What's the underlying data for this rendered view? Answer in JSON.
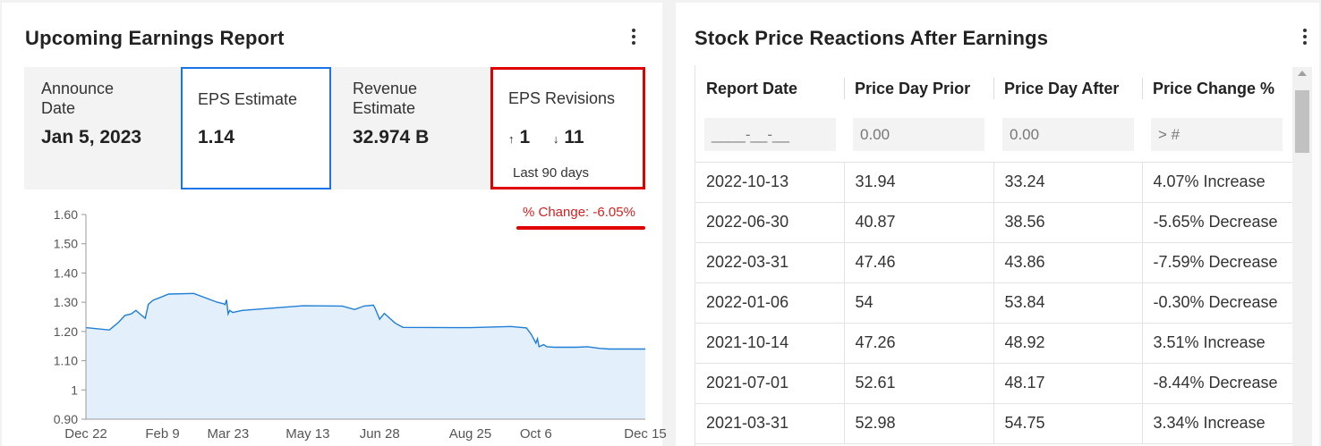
{
  "left": {
    "title": "Upcoming Earnings Report",
    "metrics": {
      "announce": {
        "label": "Announce Date",
        "value": "Jan 5, 2023"
      },
      "eps": {
        "label": "EPS Estimate",
        "value": "1.14"
      },
      "revenue": {
        "label": "Revenue Estimate",
        "value": "32.974 B"
      },
      "revisions": {
        "label": "EPS Revisions",
        "up": "1",
        "down": "11",
        "period": "Last 90 days",
        "up_icon": "↑",
        "down_icon": "↓"
      }
    },
    "pct_change": "% Change: -6.05%"
  },
  "right": {
    "title": "Stock Price Reactions After Earnings",
    "columns": [
      "Report Date",
      "Price Day Prior",
      "Price Day After",
      "Price Change %"
    ],
    "filters": [
      "____-__-__",
      "0.00",
      "0.00",
      "> #"
    ],
    "rows": [
      {
        "date": "2022-10-13",
        "prior": "31.94",
        "after": "33.24",
        "change": "4.07% Increase",
        "dir": "inc"
      },
      {
        "date": "2022-06-30",
        "prior": "40.87",
        "after": "38.56",
        "change": "-5.65% Decrease",
        "dir": "dec"
      },
      {
        "date": "2022-03-31",
        "prior": "47.46",
        "after": "43.86",
        "change": "-7.59% Decrease",
        "dir": "dec"
      },
      {
        "date": "2022-01-06",
        "prior": "54",
        "after": "53.84",
        "change": "-0.30% Decrease",
        "dir": "dec"
      },
      {
        "date": "2021-10-14",
        "prior": "47.26",
        "after": "48.92",
        "change": "3.51% Increase",
        "dir": "inc"
      },
      {
        "date": "2021-07-01",
        "prior": "52.61",
        "after": "48.17",
        "change": "-8.44% Decrease",
        "dir": "dec"
      },
      {
        "date": "2021-03-31",
        "prior": "52.98",
        "after": "54.75",
        "change": "3.34% Increase",
        "dir": "inc"
      }
    ]
  },
  "colors": {
    "accent_blue": "#1a73e8",
    "highlight_red": "#e00000",
    "increase": "#2b8a1e",
    "decrease": "#d62020",
    "line": "#1f7fd6",
    "area_fill": "#e3effb"
  },
  "icons": {
    "menu": "kebab-menu-icon"
  },
  "chart_data": {
    "type": "area",
    "ylim": [
      0.9,
      1.6
    ],
    "yticks": [
      "0.90",
      "1",
      "1.10",
      "1.20",
      "1.30",
      "1.40",
      "1.50",
      "1.60"
    ],
    "xtick_labels": [
      "Dec 22",
      "Feb 9",
      "Mar 23",
      "May 13",
      "Jun 28",
      "Aug 25",
      "Oct 6",
      "Dec 15"
    ],
    "x_range": [
      "2021-12-22",
      "2022-12-15"
    ],
    "x": [
      "2021-12-22",
      "2022-01-06",
      "2022-01-12",
      "2022-01-16",
      "2022-01-20",
      "2022-01-23",
      "2022-01-26",
      "2022-01-29",
      "2022-01-31",
      "2022-02-03",
      "2022-02-07",
      "2022-02-13",
      "2022-03-01",
      "2022-03-16",
      "2022-03-20",
      "2022-03-21",
      "2022-03-22",
      "2022-03-23",
      "2022-03-24",
      "2022-03-26",
      "2022-04-01",
      "2022-05-10",
      "2022-06-04",
      "2022-06-12",
      "2022-06-18",
      "2022-06-24",
      "2022-06-25",
      "2022-06-28",
      "2022-07-01",
      "2022-07-08",
      "2022-07-13",
      "2022-08-25",
      "2022-09-20",
      "2022-09-30",
      "2022-10-03",
      "2022-10-06",
      "2022-10-07",
      "2022-10-08",
      "2022-10-11",
      "2022-10-13",
      "2022-10-18",
      "2022-11-01",
      "2022-11-08",
      "2022-11-16",
      "2022-11-22",
      "2022-12-15"
    ],
    "y": [
      1.213,
      1.205,
      1.232,
      1.255,
      1.26,
      1.272,
      1.258,
      1.245,
      1.293,
      1.307,
      1.315,
      1.328,
      1.33,
      1.3,
      1.295,
      1.292,
      1.308,
      1.26,
      1.272,
      1.265,
      1.272,
      1.288,
      1.287,
      1.275,
      1.287,
      1.29,
      1.28,
      1.242,
      1.262,
      1.228,
      1.214,
      1.213,
      1.217,
      1.212,
      1.19,
      1.16,
      1.175,
      1.148,
      1.155,
      1.148,
      1.146,
      1.146,
      1.148,
      1.142,
      1.14,
      1.14
    ]
  }
}
